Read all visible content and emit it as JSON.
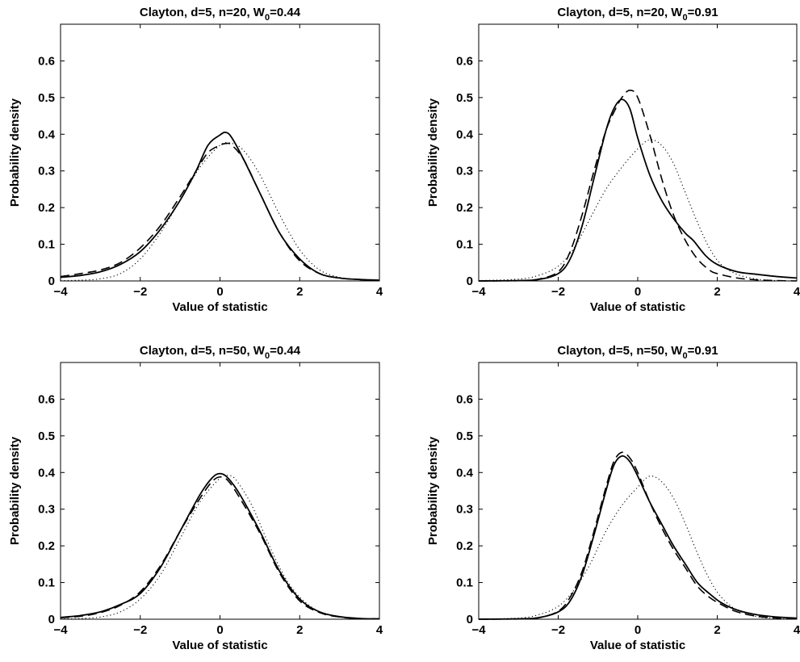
{
  "chart_data": [
    {
      "type": "line",
      "title": {
        "prefix": "Clayton, d=5, n=20, W",
        "sub": "0",
        "suffix": "=0.44"
      },
      "xlabel": "Value of statistic",
      "ylabel": "Probability density",
      "xlim": [
        -4,
        4
      ],
      "ylim": [
        0,
        0.7
      ],
      "xticks": [
        -4,
        -2,
        0,
        2,
        4
      ],
      "yticks": [
        0,
        0.1,
        0.2,
        0.3,
        0.4,
        0.5,
        0.6
      ],
      "ytick_labels": [
        "0",
        "0.1",
        "0.2",
        "0.3",
        "0.4",
        "0.5",
        "0.6"
      ],
      "grid": false,
      "series": [
        {
          "style": "solid",
          "x": [
            -4,
            -3.5,
            -3,
            -2.5,
            -2,
            -1.5,
            -1,
            -0.6,
            -0.3,
            0,
            0.15,
            0.3,
            0.6,
            1,
            1.5,
            2,
            2.5,
            3,
            3.5,
            4
          ],
          "y": [
            0.01,
            0.015,
            0.025,
            0.045,
            0.08,
            0.14,
            0.22,
            0.3,
            0.37,
            0.398,
            0.405,
            0.39,
            0.33,
            0.24,
            0.13,
            0.06,
            0.02,
            0.008,
            0.004,
            0.002
          ]
        },
        {
          "style": "dashed",
          "x": [
            -4,
            -3.5,
            -3,
            -2.5,
            -2,
            -1.5,
            -1,
            -0.6,
            -0.3,
            0,
            0.15,
            0.3,
            0.6,
            1,
            1.5,
            2,
            2.5,
            3,
            3.5,
            4
          ],
          "y": [
            0.012,
            0.02,
            0.03,
            0.05,
            0.09,
            0.15,
            0.23,
            0.3,
            0.35,
            0.37,
            0.375,
            0.37,
            0.33,
            0.24,
            0.13,
            0.055,
            0.02,
            0.008,
            0.004,
            0.002
          ]
        },
        {
          "style": "dotted",
          "x": [
            -4,
            -3.5,
            -3,
            -2.5,
            -2,
            -1.5,
            -1,
            -0.5,
            0,
            0.3,
            0.6,
            1,
            1.5,
            2,
            2.5,
            3,
            3.5,
            4
          ],
          "y": [
            0.001,
            0.002,
            0.006,
            0.02,
            0.06,
            0.13,
            0.22,
            0.31,
            0.37,
            0.375,
            0.355,
            0.29,
            0.18,
            0.085,
            0.03,
            0.01,
            0.003,
            0.001
          ]
        }
      ]
    },
    {
      "type": "line",
      "title": {
        "prefix": "Clayton, d=5, n=20, W",
        "sub": "0",
        "suffix": "=0.91"
      },
      "xlabel": "Value of statistic",
      "ylabel": "Probability density",
      "xlim": [
        -4,
        4
      ],
      "ylim": [
        0,
        0.7
      ],
      "xticks": [
        -4,
        -2,
        0,
        2,
        4
      ],
      "yticks": [
        0,
        0.1,
        0.2,
        0.3,
        0.4,
        0.5,
        0.6
      ],
      "ytick_labels": [
        "0",
        "0.1",
        "0.2",
        "0.3",
        "0.4",
        "0.5",
        "0.6"
      ],
      "grid": false,
      "series": [
        {
          "style": "solid",
          "x": [
            -4,
            -3,
            -2.5,
            -2,
            -1.7,
            -1.4,
            -1.1,
            -0.8,
            -0.6,
            -0.4,
            -0.2,
            0,
            0.3,
            0.6,
            0.9,
            1.2,
            1.4,
            1.7,
            2,
            2.5,
            3,
            3.5,
            4
          ],
          "y": [
            0,
            0.001,
            0.004,
            0.02,
            0.06,
            0.15,
            0.28,
            0.41,
            0.47,
            0.495,
            0.47,
            0.39,
            0.29,
            0.22,
            0.17,
            0.13,
            0.11,
            0.07,
            0.045,
            0.025,
            0.018,
            0.012,
            0.008
          ]
        },
        {
          "style": "dashed",
          "x": [
            -4,
            -3,
            -2.5,
            -2,
            -1.7,
            -1.4,
            -1.1,
            -0.8,
            -0.6,
            -0.4,
            -0.2,
            0,
            0.3,
            0.6,
            0.9,
            1.2,
            1.5,
            1.8,
            2,
            2.5,
            3,
            3.5,
            4
          ],
          "y": [
            0,
            0.001,
            0.005,
            0.025,
            0.08,
            0.18,
            0.3,
            0.41,
            0.46,
            0.5,
            0.52,
            0.5,
            0.4,
            0.28,
            0.18,
            0.11,
            0.06,
            0.03,
            0.02,
            0.008,
            0.003,
            0.001,
            0
          ]
        },
        {
          "style": "dotted",
          "x": [
            -4,
            -3,
            -2.5,
            -2,
            -1.6,
            -1.2,
            -0.8,
            -0.4,
            0,
            0.3,
            0.6,
            0.9,
            1.2,
            1.5,
            1.8,
            2.1,
            2.5,
            3,
            3.5,
            4
          ],
          "y": [
            0.001,
            0.005,
            0.015,
            0.04,
            0.09,
            0.17,
            0.25,
            0.31,
            0.36,
            0.385,
            0.37,
            0.32,
            0.24,
            0.16,
            0.09,
            0.045,
            0.018,
            0.005,
            0.001,
            0
          ]
        }
      ]
    },
    {
      "type": "line",
      "title": {
        "prefix": "Clayton, d=5, n=50, W",
        "sub": "0",
        "suffix": "=0.44"
      },
      "xlabel": "Value of statistic",
      "ylabel": "Probability density",
      "xlim": [
        -4,
        4
      ],
      "ylim": [
        0,
        0.7
      ],
      "xticks": [
        -4,
        -2,
        0,
        2,
        4
      ],
      "yticks": [
        0,
        0.1,
        0.2,
        0.3,
        0.4,
        0.5,
        0.6
      ],
      "ytick_labels": [
        "0",
        "0.1",
        "0.2",
        "0.3",
        "0.4",
        "0.5",
        "0.6"
      ],
      "grid": false,
      "series": [
        {
          "style": "solid",
          "x": [
            -4,
            -3.5,
            -3,
            -2.5,
            -2,
            -1.5,
            -1,
            -0.5,
            -0.2,
            0,
            0.2,
            0.5,
            1,
            1.5,
            2,
            2.5,
            3,
            3.5,
            4
          ],
          "y": [
            0.005,
            0.01,
            0.02,
            0.04,
            0.07,
            0.14,
            0.24,
            0.34,
            0.385,
            0.397,
            0.385,
            0.34,
            0.24,
            0.13,
            0.055,
            0.02,
            0.007,
            0.002,
            0.001
          ]
        },
        {
          "style": "dashed",
          "x": [
            -4,
            -3.5,
            -3,
            -2.5,
            -2,
            -1.5,
            -1,
            -0.5,
            -0.2,
            0,
            0.2,
            0.5,
            1,
            1.5,
            2,
            2.5,
            3,
            3.5,
            4
          ],
          "y": [
            0.004,
            0.008,
            0.018,
            0.038,
            0.075,
            0.145,
            0.24,
            0.33,
            0.375,
            0.388,
            0.378,
            0.33,
            0.235,
            0.125,
            0.05,
            0.018,
            0.006,
            0.002,
            0.001
          ]
        },
        {
          "style": "dotted",
          "x": [
            -4,
            -3.5,
            -3,
            -2.5,
            -2,
            -1.5,
            -1,
            -0.5,
            0,
            0.2,
            0.4,
            0.8,
            1.2,
            1.6,
            2,
            2.5,
            3,
            3.5,
            4
          ],
          "y": [
            0.0005,
            0.002,
            0.006,
            0.02,
            0.055,
            0.12,
            0.22,
            0.32,
            0.385,
            0.392,
            0.38,
            0.31,
            0.21,
            0.12,
            0.06,
            0.02,
            0.006,
            0.002,
            0.0005
          ]
        }
      ]
    },
    {
      "type": "line",
      "title": {
        "prefix": "Clayton, d=5, n=50, W",
        "sub": "0",
        "suffix": "=0.91"
      },
      "xlabel": "Value of statistic",
      "ylabel": "Probability density",
      "xlim": [
        -4,
        4
      ],
      "ylim": [
        0,
        0.7
      ],
      "xticks": [
        -4,
        -2,
        0,
        2,
        4
      ],
      "yticks": [
        0,
        0.1,
        0.2,
        0.3,
        0.4,
        0.5,
        0.6
      ],
      "ytick_labels": [
        "0",
        "0.1",
        "0.2",
        "0.3",
        "0.4",
        "0.5",
        "0.6"
      ],
      "grid": false,
      "series": [
        {
          "style": "solid",
          "x": [
            -4,
            -3,
            -2.5,
            -2,
            -1.7,
            -1.4,
            -1.1,
            -0.8,
            -0.6,
            -0.4,
            -0.2,
            0,
            0.3,
            0.6,
            0.9,
            1.2,
            1.5,
            1.8,
            2.1,
            2.5,
            3,
            3.5,
            4
          ],
          "y": [
            0,
            0.001,
            0.004,
            0.02,
            0.05,
            0.12,
            0.23,
            0.35,
            0.42,
            0.445,
            0.43,
            0.39,
            0.32,
            0.26,
            0.2,
            0.15,
            0.1,
            0.07,
            0.045,
            0.025,
            0.012,
            0.006,
            0.003
          ]
        },
        {
          "style": "dashed",
          "x": [
            -4,
            -3,
            -2.5,
            -2,
            -1.7,
            -1.4,
            -1.1,
            -0.8,
            -0.6,
            -0.4,
            -0.2,
            0,
            0.3,
            0.6,
            0.9,
            1.2,
            1.5,
            1.8,
            2.1,
            2.5,
            3,
            3.5,
            4
          ],
          "y": [
            0,
            0.001,
            0.004,
            0.022,
            0.06,
            0.13,
            0.24,
            0.36,
            0.43,
            0.455,
            0.44,
            0.4,
            0.32,
            0.25,
            0.19,
            0.14,
            0.09,
            0.06,
            0.04,
            0.02,
            0.008,
            0.003,
            0.001
          ]
        },
        {
          "style": "dotted",
          "x": [
            -4,
            -3,
            -2.5,
            -2,
            -1.6,
            -1.2,
            -0.8,
            -0.4,
            0,
            0.3,
            0.6,
            0.9,
            1.2,
            1.5,
            1.8,
            2.1,
            2.5,
            3,
            3.5,
            4
          ],
          "y": [
            0.0005,
            0.003,
            0.012,
            0.035,
            0.08,
            0.15,
            0.24,
            0.31,
            0.36,
            0.39,
            0.375,
            0.33,
            0.26,
            0.18,
            0.11,
            0.06,
            0.025,
            0.007,
            0.002,
            0.0005
          ]
        }
      ]
    }
  ]
}
